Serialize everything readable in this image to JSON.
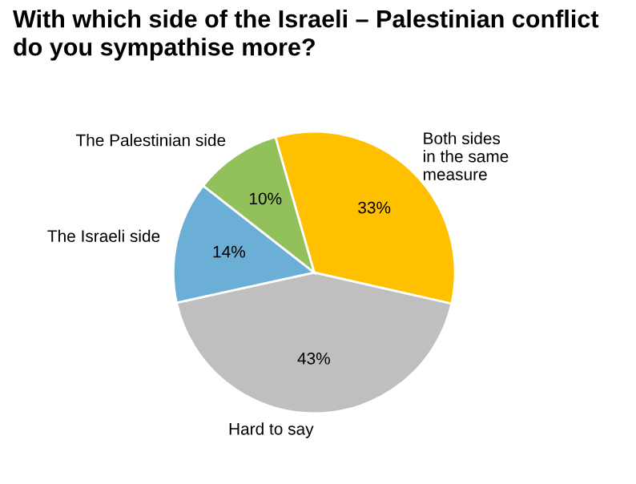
{
  "chart_data": {
    "type": "pie",
    "title": "With which side of the Israeli – Palestinian conflict\ndo you sympathise more?",
    "categories": [
      "Both sides\nin the same\nmeasure",
      "Hard to say",
      "The Israeli side",
      "The Palestinian side"
    ],
    "values": [
      33,
      43,
      14,
      10
    ],
    "value_labels": [
      "33%",
      "43%",
      "14%",
      "10%"
    ],
    "colors": [
      "#ffc000",
      "#bfbfbf",
      "#6baed6",
      "#92c15c"
    ],
    "legend": false
  }
}
